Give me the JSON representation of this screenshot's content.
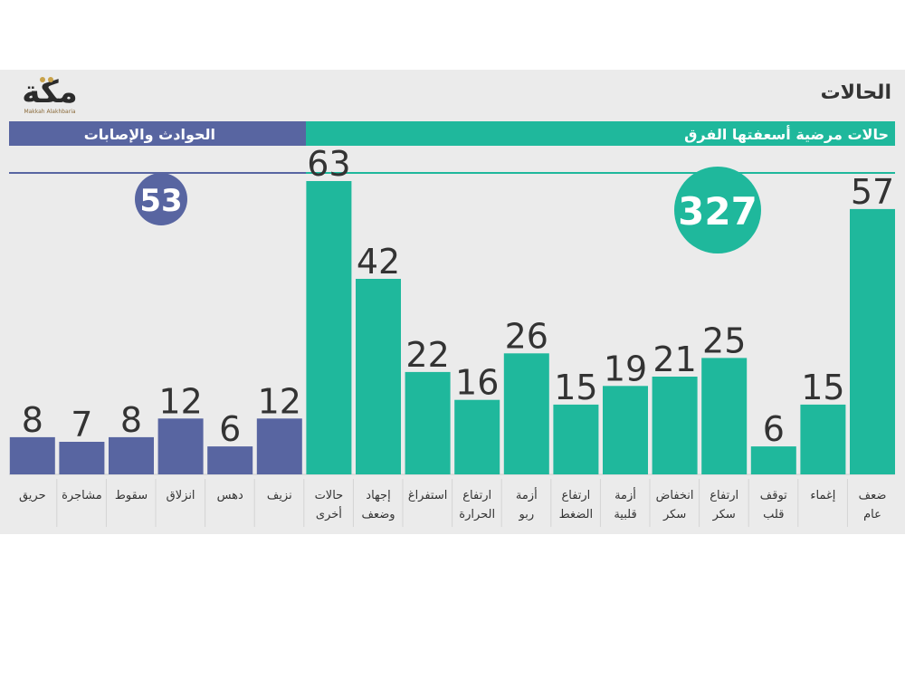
{
  "page_title": "الحالات",
  "logo": {
    "text": "مكة",
    "subtitle": "Makkah Alakhbaria"
  },
  "colors": {
    "teal": "#1fb89c",
    "navy": "#5865a1",
    "panel": "#ebebeb",
    "text": "#333333"
  },
  "chart_data": {
    "type": "bar",
    "title": "الحالات",
    "groups": [
      {
        "name": "حالات مرضية أسعفتها الفرق",
        "total": "327",
        "color": "#1fb89c"
      },
      {
        "name": "الحوادث والإصابات",
        "total": "53",
        "color": "#5865a1"
      }
    ],
    "categories": [
      [
        "ضعف",
        "عام"
      ],
      [
        "إغماء"
      ],
      [
        "توقف",
        "قلب"
      ],
      [
        "ارتفاع",
        "سكر"
      ],
      [
        "انخفاض",
        "سكر"
      ],
      [
        "أزمة",
        "قلبية"
      ],
      [
        "ارتفاع",
        "الضغط"
      ],
      [
        "أزمة",
        "ربو"
      ],
      [
        "ارتفاع",
        "الحرارة"
      ],
      [
        "استفراغ"
      ],
      [
        "إجهاد",
        "وضعف"
      ],
      [
        "حالات",
        "أخرى"
      ],
      [
        "نزيف"
      ],
      [
        "دهس"
      ],
      [
        "انزلاق"
      ],
      [
        "سقوط"
      ],
      [
        "مشاجرة"
      ],
      [
        "حريق"
      ]
    ],
    "values": [
      57,
      15,
      6,
      25,
      21,
      19,
      15,
      26,
      16,
      22,
      42,
      63,
      12,
      6,
      12,
      8,
      7,
      8
    ],
    "group_index": [
      0,
      0,
      0,
      0,
      0,
      0,
      0,
      0,
      0,
      0,
      0,
      0,
      1,
      1,
      1,
      1,
      1,
      1
    ],
    "ylim": [
      0,
      63
    ],
    "order": "right-to-left"
  }
}
